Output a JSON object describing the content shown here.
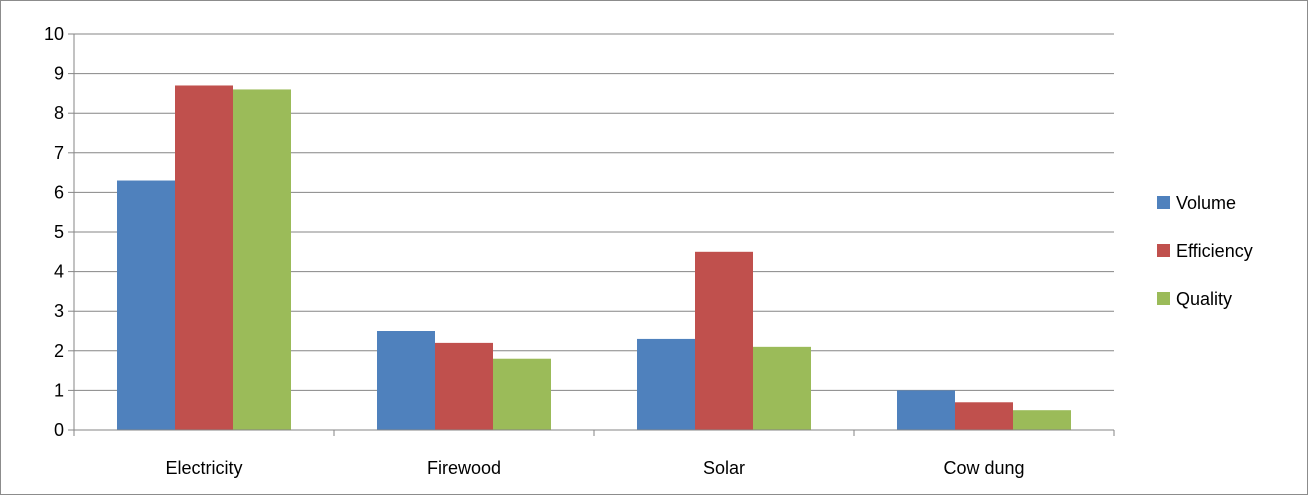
{
  "chart_data": {
    "type": "bar",
    "categories": [
      "Electricity",
      "Firewood",
      "Solar",
      "Cow dung"
    ],
    "series": [
      {
        "name": "Volume",
        "color": "#4f81bd",
        "values": [
          6.3,
          2.5,
          2.3,
          1.0
        ]
      },
      {
        "name": "Efficiency",
        "color": "#c0504d",
        "values": [
          8.7,
          2.2,
          4.5,
          0.7
        ]
      },
      {
        "name": "Quality",
        "color": "#9bbb59",
        "values": [
          8.6,
          1.8,
          2.1,
          0.5
        ]
      }
    ],
    "ylim": [
      0,
      10
    ],
    "yticks": [
      "0",
      "1",
      "2",
      "3",
      "4",
      "5",
      "6",
      "7",
      "8",
      "9",
      "10"
    ],
    "grid": true,
    "legend_position": "right",
    "title": "",
    "xlabel": "",
    "ylabel": ""
  }
}
